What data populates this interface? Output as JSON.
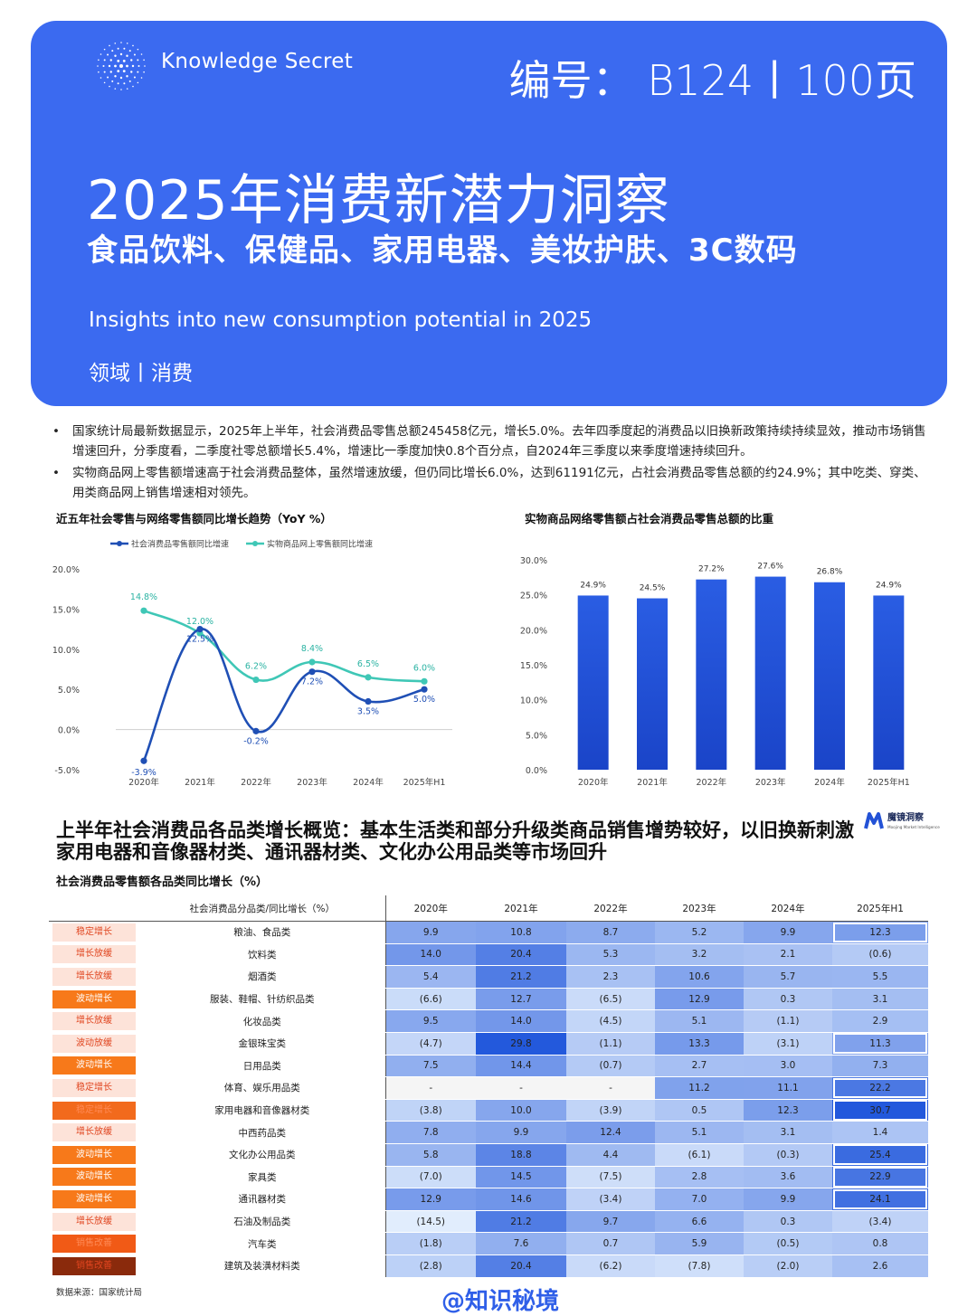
{
  "header": {
    "brand": "Knowledge Secret",
    "code": "编号： B124丨100页",
    "title": "2025年消费新潜力洞察",
    "subtitle": "食品饮料、保健品、家用电器、美妆护肤、3C数码",
    "english_title": "Insights into new consumption potential in 2025",
    "domain": "领域丨消费"
  },
  "bullets": [
    "国家统计局最新数据显示，2025年上半年，社会消费品零售总额245458亿元，增长5.0%。去年四季度起的消费品以旧换新政策持续持续显效，推动市场销售增速回升，分季度看，二季度社零总额增长5.4%，增速比一季度加快0.8个百分点，自2024年三季度以来季度增速持续回升。",
    "实物商品网上零售额增速高于社会消费品整体，虽然增速放缓，但仍同比增长6.0%，达到61191亿元，占社会消费品零售总额的约24.9%；其中吃类、穿类、用类商品网上销售增速相对领先。"
  ],
  "chart_data": [
    {
      "type": "line",
      "title": "近五年社会零售与网络零售额同比增长趋势（YoY %）",
      "categories": [
        "2020年",
        "2021年",
        "2022年",
        "2023年",
        "2024年",
        "2025年H1"
      ],
      "series": [
        {
          "name": "社会消费品零售额同比增速",
          "values": [
            -3.9,
            12.5,
            -0.2,
            7.2,
            3.5,
            5.0
          ],
          "labels": [
            "-3.9%",
            "12.5%",
            "-0.2%",
            "7.2%",
            "3.5%",
            "5.0%"
          ],
          "color": "#1f4fb5"
        },
        {
          "name": "实物商品网上零售额同比增速",
          "values": [
            14.8,
            12.0,
            6.2,
            8.4,
            6.5,
            6.0
          ],
          "labels": [
            "14.8%",
            "12.0%",
            "6.2%",
            "8.4%",
            "6.5%",
            "6.0%"
          ],
          "color": "#3fc7b6"
        }
      ],
      "yticks": [
        "-5.0%",
        "0.0%",
        "5.0%",
        "10.0%",
        "15.0%",
        "20.0%"
      ],
      "ylim": [
        -5,
        20
      ],
      "legend": "top"
    },
    {
      "type": "bar",
      "title": "实物商品网络零售额占社会消费品零售总额的比重",
      "categories": [
        "2020年",
        "2021年",
        "2022年",
        "2023年",
        "2024年",
        "2025年H1"
      ],
      "values": [
        24.9,
        24.5,
        27.2,
        27.6,
        26.8,
        24.9
      ],
      "labels": [
        "24.9%",
        "24.5%",
        "27.2%",
        "27.6%",
        "26.8%",
        "24.9%"
      ],
      "yticks": [
        "0.0%",
        "5.0%",
        "10.0%",
        "15.0%",
        "20.0%",
        "25.0%",
        "30.0%"
      ],
      "ylim": [
        0,
        30
      ],
      "color": "#2352d6"
    }
  ],
  "section": {
    "title": "上半年社会消费品各品类增长概览：基本生活类和部分升级类商品销售增势较好，以旧换新刺激家用电器和音像器材类、通讯器材类、文化办公用品类等市场回升",
    "moojing_name": "魔镜洞察",
    "moojing_en": "Moojing Market Intelligence"
  },
  "table": {
    "title": "社会消费品零售额各品类同比增长（%）",
    "header": [
      "",
      "社会消费品分品类/同比增长（%）",
      "2020年",
      "2021年",
      "2022年",
      "2023年",
      "2024年",
      "2025年H1"
    ],
    "rows": [
      {
        "tag": "稳定增长",
        "cat": "粮油、食品类",
        "vals": [
          "9.9",
          "10.8",
          "8.7",
          "5.2",
          "9.9",
          "12.3"
        ]
      },
      {
        "tag": "增长放缓",
        "cat": "饮料类",
        "vals": [
          "14.0",
          "20.4",
          "5.3",
          "3.2",
          "2.1",
          "(0.6)"
        ]
      },
      {
        "tag": "增长放缓",
        "cat": "烟酒类",
        "vals": [
          "5.4",
          "21.2",
          "2.3",
          "10.6",
          "5.7",
          "5.5"
        ]
      },
      {
        "tag": "波动增长",
        "cat": "服装、鞋帽、针纺织品类",
        "vals": [
          "(6.6)",
          "12.7",
          "(6.5)",
          "12.9",
          "0.3",
          "3.1"
        ]
      },
      {
        "tag": "增长放缓",
        "cat": "化妆品类",
        "vals": [
          "9.5",
          "14.0",
          "(4.5)",
          "5.1",
          "(1.1)",
          "2.9"
        ]
      },
      {
        "tag": "波动放缓",
        "cat": "金银珠宝类",
        "vals": [
          "(4.7)",
          "29.8",
          "(1.1)",
          "13.3",
          "(3.1)",
          "11.3"
        ]
      },
      {
        "tag": "波动增长",
        "cat": "日用品类",
        "vals": [
          "7.5",
          "14.4",
          "(0.7)",
          "2.7",
          "3.0",
          "7.3"
        ]
      },
      {
        "tag": "稳定增长",
        "cat": "体育、娱乐用品类",
        "vals": [
          "-",
          "-",
          "-",
          "11.2",
          "11.1",
          "22.2"
        ]
      },
      {
        "tag": "稳定增长",
        "cat": "家用电器和音像器材类",
        "vals": [
          "(3.8)",
          "10.0",
          "(3.9)",
          "0.5",
          "12.3",
          "30.7"
        ]
      },
      {
        "tag": "增长放缓",
        "cat": "中西药品类",
        "vals": [
          "7.8",
          "9.9",
          "12.4",
          "5.1",
          "3.1",
          "1.4"
        ]
      },
      {
        "tag": "波动增长",
        "cat": "文化办公用品类",
        "vals": [
          "5.8",
          "18.8",
          "4.4",
          "(6.1)",
          "(0.3)",
          "25.4"
        ]
      },
      {
        "tag": "波动增长",
        "cat": "家具类",
        "vals": [
          "(7.0)",
          "14.5",
          "(7.5)",
          "2.8",
          "3.6",
          "22.9"
        ]
      },
      {
        "tag": "波动增长",
        "cat": "通讯器材类",
        "vals": [
          "12.9",
          "14.6",
          "(3.4)",
          "7.0",
          "9.9",
          "24.1"
        ]
      },
      {
        "tag": "增长放缓",
        "cat": "石油及制品类",
        "vals": [
          "(14.5)",
          "21.2",
          "9.7",
          "6.6",
          "0.3",
          "(3.4)"
        ]
      },
      {
        "tag": "销售改善",
        "cat": "汽车类",
        "vals": [
          "(1.8)",
          "7.6",
          "0.7",
          "5.9",
          "(0.5)",
          "0.8"
        ]
      },
      {
        "tag": "销售改善",
        "cat": "建筑及装潢材料类",
        "vals": [
          "(2.8)",
          "20.4",
          "(6.2)",
          "(7.8)",
          "(2.0)",
          "2.6"
        ]
      }
    ]
  },
  "source": "数据来源：国家统计局",
  "watermark": "@知识秘境"
}
